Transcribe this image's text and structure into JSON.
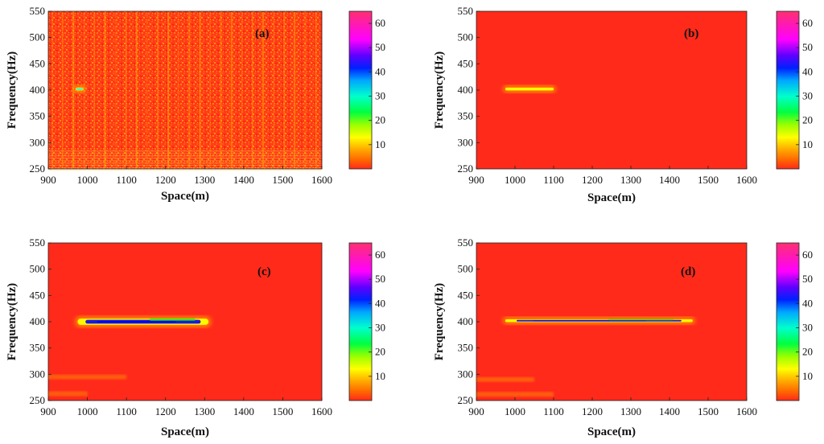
{
  "colors": {
    "background_field": "#ff2a1a",
    "colormap": [
      "#ff2a1a",
      "#ff9a00",
      "#ffff00",
      "#00ff00",
      "#00ffff",
      "#0000ff",
      "#ff00ff",
      "#ff3070"
    ]
  },
  "chart_data": [
    {
      "type": "heatmap",
      "panel_label": "(a)",
      "xlabel": "Space(m)",
      "ylabel": "Frequency(Hz)",
      "xlim": [
        900,
        1600
      ],
      "ylim": [
        250,
        550
      ],
      "xticks": [
        900,
        1000,
        1100,
        1200,
        1300,
        1400,
        1500,
        1600
      ],
      "yticks": [
        250,
        300,
        350,
        400,
        450,
        500,
        550
      ],
      "colorbar": {
        "range": [
          0,
          65
        ],
        "ticks": [
          10,
          20,
          30,
          40,
          50,
          60
        ]
      },
      "background": "noisy",
      "features": [
        {
          "x_start": 970,
          "x_end": 990,
          "freq": 402,
          "thickness_hz": 5,
          "peak": 35
        }
      ]
    },
    {
      "type": "heatmap",
      "panel_label": "(b)",
      "xlabel": "Space(m)",
      "ylabel": "Frequency(Hz)",
      "xlim": [
        900,
        1600
      ],
      "ylim": [
        250,
        550
      ],
      "xticks": [
        900,
        1000,
        1100,
        1200,
        1300,
        1400,
        1500,
        1600
      ],
      "yticks": [
        250,
        300,
        350,
        400,
        450,
        500,
        550
      ],
      "colorbar": {
        "range": [
          0,
          65
        ],
        "ticks": [
          10,
          20,
          30,
          40,
          50,
          60
        ]
      },
      "background": "smooth",
      "features": [
        {
          "x_start": 975,
          "x_end": 1100,
          "freq": 402,
          "thickness_hz": 5,
          "peak": 15
        }
      ]
    },
    {
      "type": "heatmap",
      "panel_label": "(c)",
      "xlabel": "Space(m)",
      "ylabel": "Frequency(Hz)",
      "xlim": [
        900,
        1600
      ],
      "ylim": [
        250,
        550
      ],
      "xticks": [
        900,
        1000,
        1100,
        1200,
        1300,
        1400,
        1500,
        1600
      ],
      "yticks": [
        250,
        300,
        350,
        400,
        450,
        500,
        550
      ],
      "colorbar": {
        "range": [
          0,
          65
        ],
        "ticks": [
          10,
          20,
          30,
          40,
          50,
          60
        ]
      },
      "background": "smooth",
      "features": [
        {
          "x_start": 975,
          "x_end": 1310,
          "freq": 400,
          "thickness_hz": 12,
          "peak": 45
        }
      ],
      "low_freq_bands": [
        {
          "x_start": 900,
          "x_end": 1100,
          "freq": 295
        },
        {
          "x_start": 900,
          "x_end": 1000,
          "freq": 263
        }
      ]
    },
    {
      "type": "heatmap",
      "panel_label": "(d)",
      "xlabel": "Space(m)",
      "ylabel": "Frequency(Hz)",
      "xlim": [
        900,
        1600
      ],
      "ylim": [
        250,
        550
      ],
      "xticks": [
        900,
        1000,
        1100,
        1200,
        1300,
        1400,
        1500,
        1600
      ],
      "yticks": [
        250,
        300,
        350,
        400,
        450,
        500,
        550
      ],
      "colorbar": {
        "range": [
          0,
          65
        ],
        "ticks": [
          10,
          20,
          30,
          40,
          50,
          60
        ]
      },
      "background": "smooth",
      "features": [
        {
          "x_start": 975,
          "x_end": 1460,
          "freq": 402,
          "thickness_hz": 5,
          "peak": 45
        }
      ],
      "low_freq_bands": [
        {
          "x_start": 900,
          "x_end": 1050,
          "freq": 290
        },
        {
          "x_start": 900,
          "x_end": 1100,
          "freq": 262
        }
      ]
    }
  ]
}
